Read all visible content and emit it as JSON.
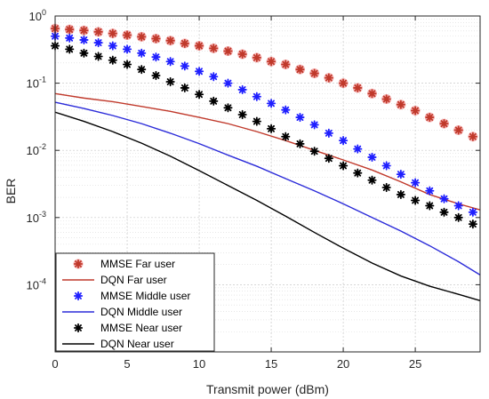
{
  "chart_data": {
    "type": "scatter",
    "xlabel": "Transmit power (dBm)",
    "ylabel": "BER",
    "xlim": [
      0,
      29.5
    ],
    "ylim": [
      1e-05,
      1
    ],
    "yscale": "log",
    "grid": true,
    "minor_grid": true,
    "legend_position": "bottom-left",
    "x_ticks": [
      0,
      5,
      10,
      15,
      20,
      25
    ],
    "x_tick_labels": [
      "0",
      "5",
      "10",
      "15",
      "20",
      "25"
    ],
    "y_ticks": [
      0.0001,
      0.001,
      0.01,
      0.1,
      1
    ],
    "y_tick_labels": [
      {
        "base": "10",
        "exp": "-4"
      },
      {
        "base": "10",
        "exp": "-3"
      },
      {
        "base": "10",
        "exp": "-2"
      },
      {
        "base": "10",
        "exp": "-1"
      },
      {
        "base": "10",
        "exp": "0"
      }
    ],
    "series": [
      {
        "name": "MMSE Far user",
        "style": "marker",
        "color": "#c0392b",
        "halo": "#f4a6a6",
        "x": [
          0,
          1,
          2,
          3,
          4,
          5,
          6,
          7,
          8,
          9,
          10,
          11,
          12,
          13,
          14,
          15,
          16,
          17,
          18,
          19,
          20,
          21,
          22,
          23,
          24,
          25,
          26,
          27,
          28,
          29
        ],
        "y": [
          0.65,
          0.63,
          0.61,
          0.58,
          0.55,
          0.52,
          0.49,
          0.46,
          0.43,
          0.39,
          0.36,
          0.33,
          0.3,
          0.27,
          0.24,
          0.21,
          0.19,
          0.16,
          0.14,
          0.12,
          0.1,
          0.085,
          0.07,
          0.058,
          0.048,
          0.039,
          0.031,
          0.025,
          0.02,
          0.016
        ]
      },
      {
        "name": "DQN Far user",
        "style": "line",
        "color": "#c0392b",
        "x": [
          0,
          2,
          4,
          6,
          8,
          10,
          12,
          14,
          16,
          18,
          20,
          22,
          24,
          26,
          28,
          29.5
        ],
        "y": [
          0.07,
          0.06,
          0.053,
          0.045,
          0.038,
          0.031,
          0.025,
          0.019,
          0.014,
          0.01,
          0.0072,
          0.0051,
          0.0034,
          0.0022,
          0.0016,
          0.0013
        ]
      },
      {
        "name": "MMSE Middle user",
        "style": "marker",
        "color": "#1f1fff",
        "x": [
          0,
          1,
          2,
          3,
          4,
          5,
          6,
          7,
          8,
          9,
          10,
          11,
          12,
          13,
          14,
          15,
          16,
          17,
          18,
          19,
          20,
          21,
          22,
          23,
          24,
          25,
          26,
          27,
          28,
          29
        ],
        "y": [
          0.5,
          0.47,
          0.44,
          0.4,
          0.36,
          0.32,
          0.28,
          0.245,
          0.21,
          0.18,
          0.15,
          0.125,
          0.1,
          0.08,
          0.063,
          0.05,
          0.04,
          0.031,
          0.024,
          0.018,
          0.014,
          0.0105,
          0.0079,
          0.0059,
          0.0044,
          0.0033,
          0.0025,
          0.0019,
          0.0015,
          0.0012
        ]
      },
      {
        "name": "DQN Middle user",
        "style": "line",
        "color": "#2b2bd9",
        "x": [
          0,
          2,
          4,
          6,
          8,
          10,
          12,
          14,
          16,
          18,
          20,
          22,
          24,
          26,
          28,
          29.5
        ],
        "y": [
          0.052,
          0.042,
          0.033,
          0.025,
          0.018,
          0.0126,
          0.0085,
          0.0058,
          0.0038,
          0.0025,
          0.0016,
          0.001,
          0.00063,
          0.00038,
          0.00022,
          0.00014
        ]
      },
      {
        "name": "MMSE Near user",
        "style": "marker",
        "color": "#000000",
        "x": [
          0,
          1,
          2,
          3,
          4,
          5,
          6,
          7,
          8,
          9,
          10,
          11,
          12,
          13,
          14,
          15,
          16,
          17,
          18,
          19,
          20,
          21,
          22,
          23,
          24,
          25,
          26,
          27,
          28,
          29
        ],
        "y": [
          0.36,
          0.32,
          0.28,
          0.25,
          0.22,
          0.19,
          0.16,
          0.13,
          0.105,
          0.085,
          0.068,
          0.054,
          0.043,
          0.034,
          0.027,
          0.021,
          0.016,
          0.0125,
          0.0097,
          0.0076,
          0.0059,
          0.0046,
          0.0036,
          0.0028,
          0.0022,
          0.0018,
          0.0015,
          0.0012,
          0.001,
          0.0008
        ]
      },
      {
        "name": "DQN Near user",
        "style": "line",
        "color": "#000000",
        "x": [
          0,
          2,
          4,
          6,
          8,
          10,
          12,
          14,
          16,
          18,
          20,
          22,
          24,
          26,
          28,
          29.5
        ],
        "y": [
          0.037,
          0.027,
          0.019,
          0.0128,
          0.0082,
          0.005,
          0.003,
          0.0018,
          0.00105,
          0.0006,
          0.00035,
          0.00021,
          0.000135,
          9.5e-05,
          7.2e-05,
          5.8e-05
        ]
      }
    ]
  }
}
